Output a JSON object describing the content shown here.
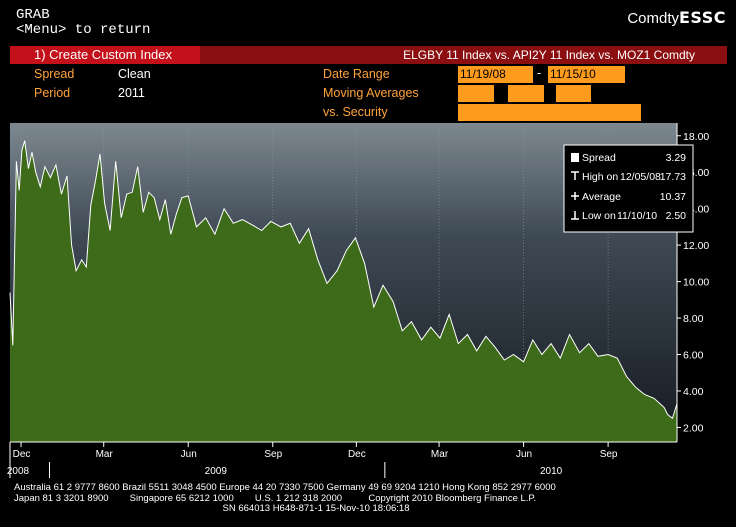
{
  "header": {
    "function": "GRAB",
    "menu_hint": "<Menu> to return",
    "security": "Comdty",
    "code": "ESSC"
  },
  "title_bar": {
    "menu_item": "1) Create Custom Index",
    "index_title": "ELGBY 11 Index vs. API2Y 11 Index vs. MOZ1 Comdty"
  },
  "params": {
    "spread_label": "Spread",
    "spread_value": "Clean",
    "period_label": "Period",
    "period_value": "2011",
    "date_range_label": "Date Range",
    "date_start": "11/19/08",
    "date_sep": "-",
    "date_end": "11/15/10",
    "moving_avg_label": "Moving Averages",
    "vs_security_label": "vs. Security"
  },
  "legend": {
    "spread_label": "Spread",
    "spread_value": "3.29",
    "high_label": "High on",
    "high_date": "12/05/08",
    "high_value": "17.73",
    "avg_label": "Average",
    "avg_value": "10.37",
    "low_label": "Low on",
    "low_date": "11/10/10",
    "low_value": "2.50"
  },
  "colors": {
    "area_fill": "#3d6b1a",
    "line": "#ffffff",
    "label_orange": "#ffa33b",
    "box_orange": "#ff9c1e",
    "title_red": "#c3101a"
  },
  "chart_data": {
    "type": "area",
    "series": [
      {
        "name": "Spread",
        "x": [
          "2008-11-19",
          "2008-11-22",
          "2008-11-26",
          "2008-11-29",
          "2008-12-02",
          "2008-12-05",
          "2008-12-09",
          "2008-12-13",
          "2008-12-17",
          "2008-12-22",
          "2008-12-27",
          "2009-01-02",
          "2009-01-08",
          "2009-01-14",
          "2009-01-20",
          "2009-01-25",
          "2009-01-30",
          "2009-02-05",
          "2009-02-10",
          "2009-02-15",
          "2009-02-20",
          "2009-02-25",
          "2009-03-02",
          "2009-03-08",
          "2009-03-14",
          "2009-03-20",
          "2009-03-26",
          "2009-04-01",
          "2009-04-07",
          "2009-04-13",
          "2009-04-19",
          "2009-04-25",
          "2009-05-01",
          "2009-05-07",
          "2009-05-13",
          "2009-05-19",
          "2009-05-25",
          "2009-06-01",
          "2009-06-10",
          "2009-06-20",
          "2009-06-30",
          "2009-07-10",
          "2009-07-20",
          "2009-07-30",
          "2009-08-10",
          "2009-08-20",
          "2009-08-30",
          "2009-09-10",
          "2009-09-20",
          "2009-09-30",
          "2009-10-10",
          "2009-10-20",
          "2009-10-30",
          "2009-11-10",
          "2009-11-20",
          "2009-11-30",
          "2009-12-10",
          "2009-12-20",
          "2009-12-30",
          "2010-01-10",
          "2010-01-20",
          "2010-01-30",
          "2010-02-10",
          "2010-02-20",
          "2010-03-02",
          "2010-03-12",
          "2010-03-22",
          "2010-04-01",
          "2010-04-11",
          "2010-04-21",
          "2010-05-01",
          "2010-05-11",
          "2010-05-21",
          "2010-06-01",
          "2010-06-11",
          "2010-06-21",
          "2010-07-01",
          "2010-07-11",
          "2010-07-21",
          "2010-08-01",
          "2010-08-11",
          "2010-08-21",
          "2010-09-01",
          "2010-09-11",
          "2010-09-21",
          "2010-10-01",
          "2010-10-11",
          "2010-10-21",
          "2010-11-01",
          "2010-11-05",
          "2010-11-10",
          "2010-11-15"
        ],
        "y": [
          9.4,
          6.5,
          16.6,
          15.0,
          17.2,
          17.73,
          16.2,
          17.1,
          16.0,
          15.2,
          16.3,
          15.7,
          16.4,
          14.8,
          15.8,
          12.0,
          10.6,
          11.2,
          10.8,
          14.2,
          15.5,
          17.0,
          14.3,
          12.8,
          16.6,
          13.5,
          14.8,
          14.9,
          16.3,
          13.8,
          14.9,
          14.6,
          13.4,
          14.5,
          12.6,
          13.7,
          14.6,
          14.7,
          13.0,
          13.5,
          12.6,
          14.0,
          13.2,
          13.4,
          13.1,
          12.8,
          13.3,
          13.0,
          13.2,
          12.1,
          12.9,
          11.2,
          9.9,
          10.6,
          11.7,
          12.4,
          11.0,
          8.6,
          9.8,
          8.9,
          7.3,
          7.8,
          6.8,
          7.5,
          6.9,
          8.2,
          6.6,
          7.1,
          6.2,
          7.0,
          6.4,
          5.7,
          6.0,
          5.6,
          6.8,
          6.0,
          6.6,
          5.8,
          7.1,
          6.1,
          6.6,
          5.9,
          6.0,
          5.8,
          4.8,
          4.2,
          3.8,
          3.6,
          3.1,
          2.7,
          2.5,
          3.29
        ]
      }
    ],
    "ylim": [
      1.2,
      18.7
    ],
    "yticks": [
      "2.00",
      "4.00",
      "6.00",
      "8.00",
      "10.00",
      "12.00",
      "14.00",
      "16.00",
      "18.00"
    ],
    "xlim": [
      "2008-11-19",
      "2010-11-15"
    ],
    "x_month_ticks": [
      {
        "label": "Dec",
        "date": "2008-12-01"
      },
      {
        "label": "Mar",
        "date": "2009-03-01"
      },
      {
        "label": "Jun",
        "date": "2009-06-01"
      },
      {
        "label": "Sep",
        "date": "2009-09-01"
      },
      {
        "label": "Dec",
        "date": "2009-12-01"
      },
      {
        "label": "Mar",
        "date": "2010-03-01"
      },
      {
        "label": "Jun",
        "date": "2010-06-01"
      },
      {
        "label": "Sep",
        "date": "2010-09-01"
      }
    ],
    "x_year_ticks": [
      {
        "label": "2008",
        "date": "2008-11-19"
      },
      {
        "label": "2009",
        "date": "2009-07-01"
      },
      {
        "label": "2010",
        "date": "2010-07-01"
      }
    ],
    "grid": "vertical dotted",
    "legend_position": "top-right"
  },
  "footer": {
    "line1": "Australia 61 2 9777 8600 Brazil 5511 3048 4500 Europe 44 20 7330 7500 Germany 49 69 9204 1210 Hong Kong 852 2977 6000",
    "line2": "Japan 81 3 3201 8900        Singapore 65 6212 1000        U.S. 1 212 318 2000          Copyright 2010 Bloomberg Finance L.P.",
    "line3": "                                                                               SN 664013 H648-871-1 15-Nov-10 18:06:18"
  }
}
